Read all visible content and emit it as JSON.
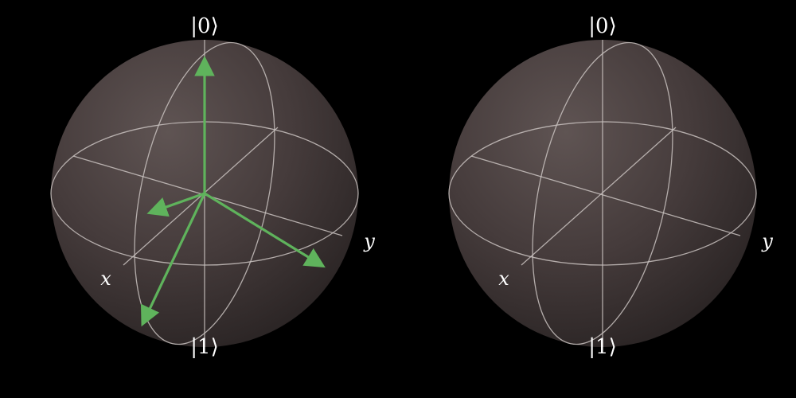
{
  "colors": {
    "background": "#000000",
    "sphere_light": "#5b504f",
    "sphere_dark": "#2a2424",
    "wireframe": "#c9c2c0",
    "vector": "#5fb35c",
    "label": "#ffffff"
  },
  "spheres": [
    {
      "name": "bloch-sphere-left",
      "labels": {
        "top": "|0⟩",
        "bottom": "|1⟩",
        "x_axis": "x",
        "y_axis": "y"
      },
      "vector_count": 4
    },
    {
      "name": "bloch-sphere-right",
      "labels": {
        "top": "|0⟩",
        "bottom": "|1⟩",
        "x_axis": "x",
        "y_axis": "y"
      },
      "vector_count": 0
    }
  ]
}
